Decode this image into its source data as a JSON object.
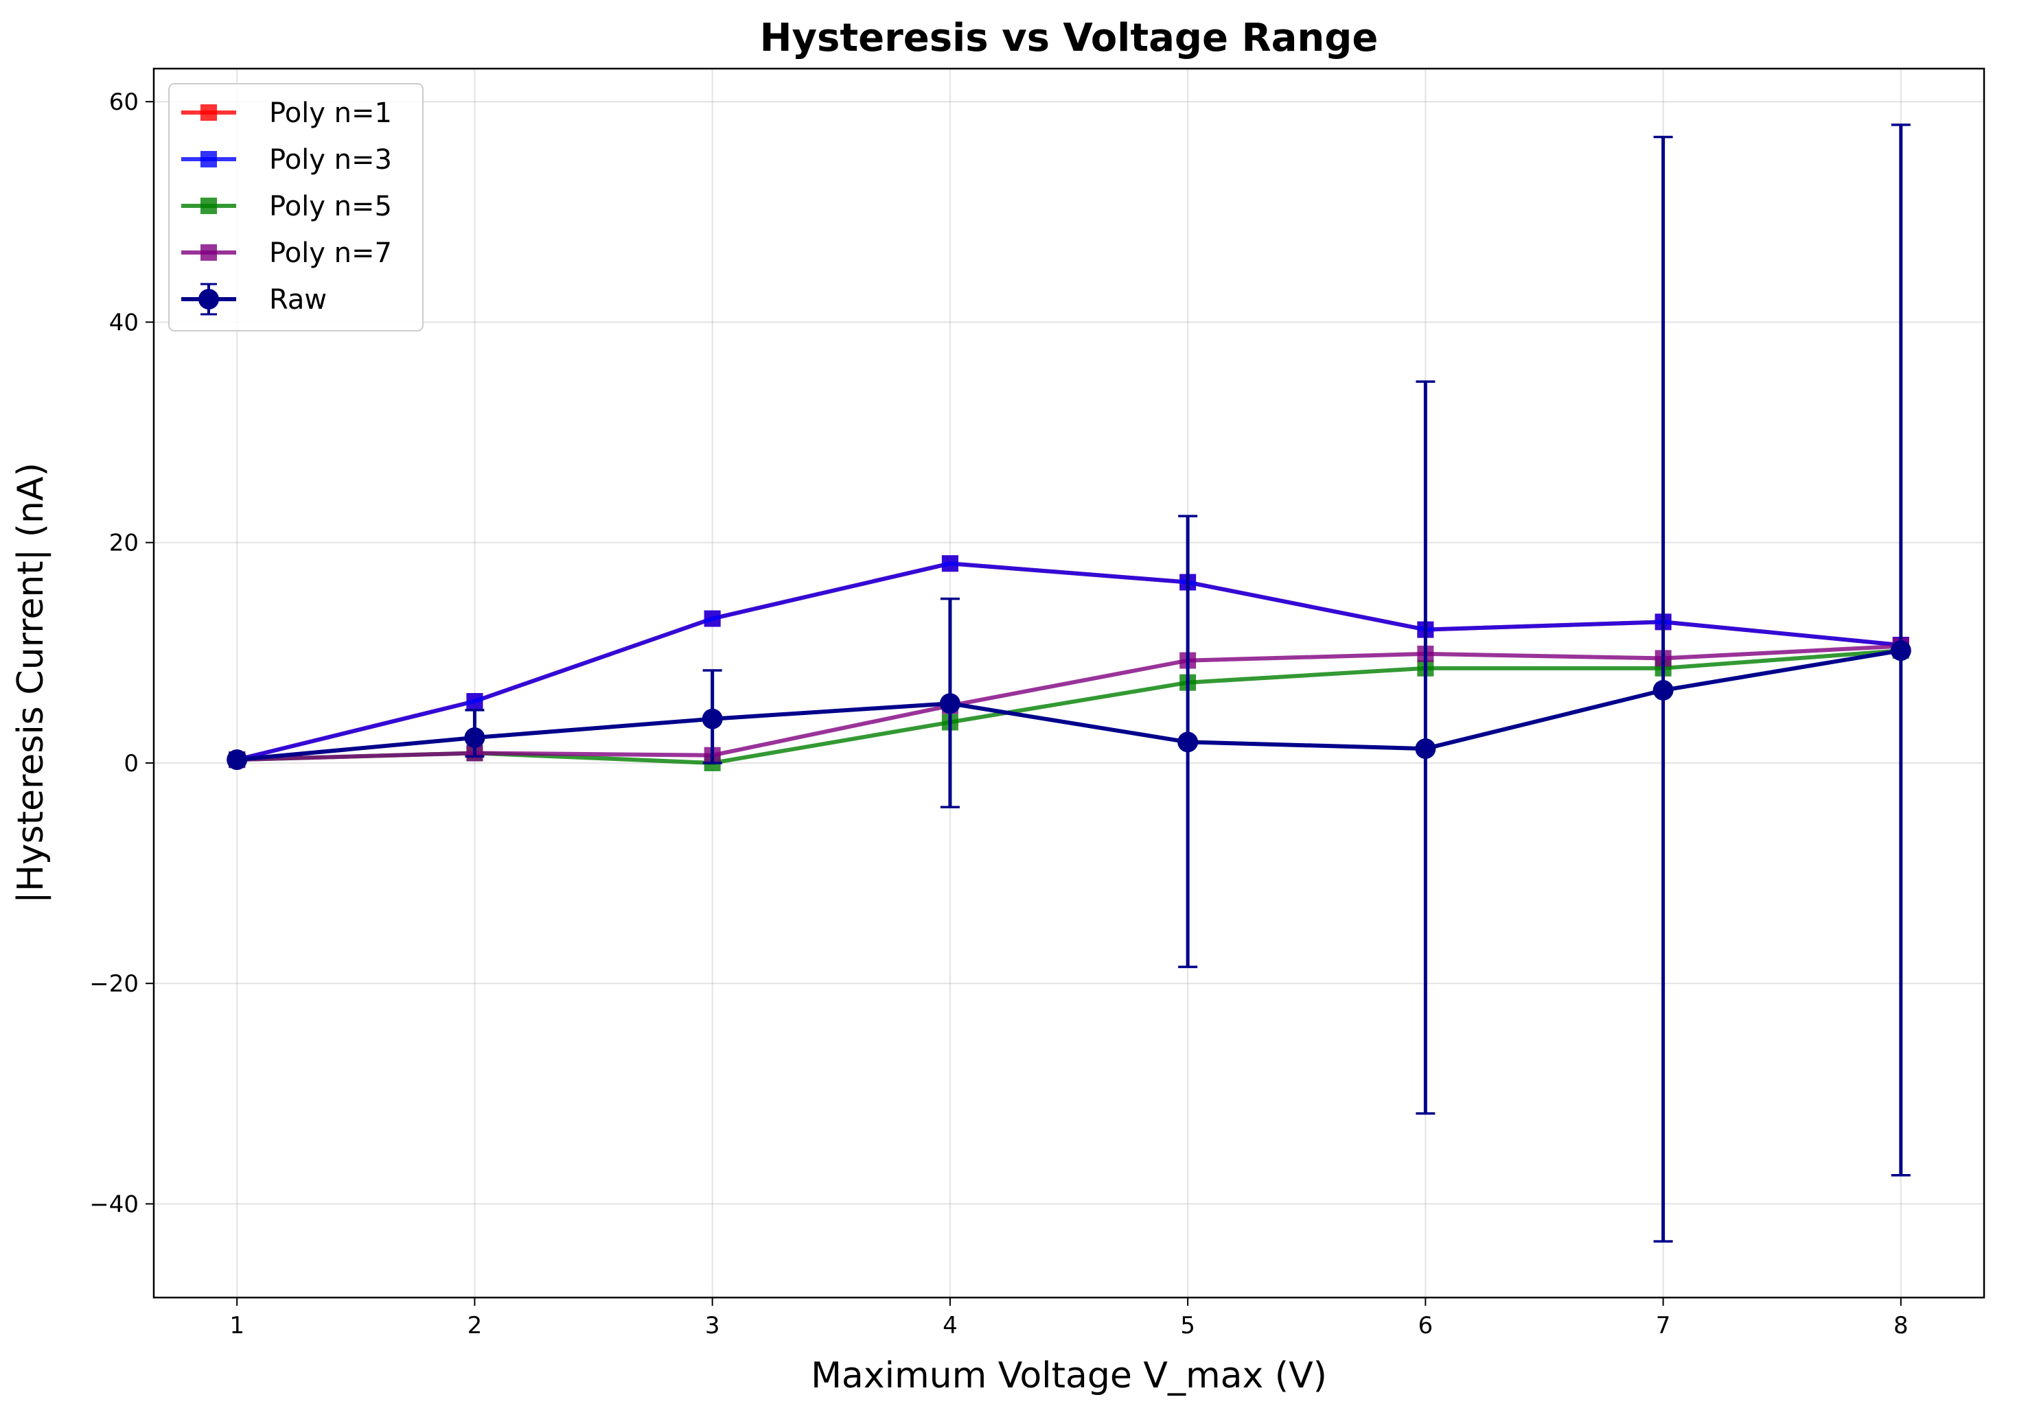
{
  "chart_data": {
    "type": "line",
    "title": "Hysteresis vs Voltage Range",
    "xlabel": "Maximum Voltage V_max (V)",
    "ylabel": "|Hysteresis Current| (nA)",
    "xlim": [
      0.65,
      8.35
    ],
    "ylim": [
      -48.5,
      63
    ],
    "xticks": [
      1,
      2,
      3,
      4,
      5,
      6,
      7,
      8
    ],
    "yticks": [
      -40,
      -20,
      0,
      20,
      40,
      60
    ],
    "ytick_labels": [
      "−40",
      "−20",
      "0",
      "20",
      "40",
      "60"
    ],
    "grid": true,
    "legend_position": "top-left",
    "x": [
      1,
      2,
      3,
      4,
      5,
      6,
      7,
      8
    ],
    "series": [
      {
        "name": "Poly n=1",
        "color": "#ff0000",
        "marker": "square",
        "values": [
          0.3,
          5.6,
          13.1,
          18.1,
          16.4,
          12.1,
          12.8,
          10.7
        ]
      },
      {
        "name": "Poly n=3",
        "color": "#0000ff",
        "marker": "square",
        "values": [
          0.3,
          5.6,
          13.1,
          18.1,
          16.4,
          12.1,
          12.8,
          10.7
        ]
      },
      {
        "name": "Poly n=5",
        "color": "#008000",
        "marker": "square",
        "values": [
          0.3,
          0.9,
          0.0,
          3.7,
          7.3,
          8.6,
          8.6,
          10.2
        ]
      },
      {
        "name": "Poly n=7",
        "color": "#800080",
        "marker": "square",
        "values": [
          0.3,
          0.9,
          0.7,
          5.2,
          9.3,
          9.9,
          9.5,
          10.6
        ]
      },
      {
        "name": "Raw",
        "color": "#00008b",
        "marker": "circle",
        "values": [
          0.3,
          2.3,
          4.0,
          5.4,
          1.9,
          1.3,
          6.6,
          10.2
        ],
        "error_low": [
          0.1,
          0.6,
          0.0,
          -4.0,
          -18.5,
          -31.8,
          -43.4,
          -37.4
        ],
        "error_high": [
          0.5,
          4.8,
          8.4,
          14.9,
          22.4,
          34.6,
          56.8,
          57.9
        ]
      }
    ]
  }
}
